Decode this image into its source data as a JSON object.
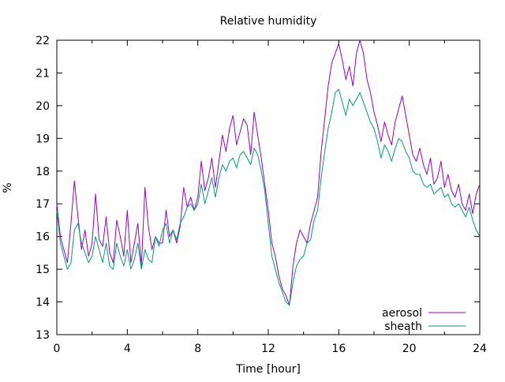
{
  "chart_data": {
    "type": "line",
    "title": "Relative humidity",
    "xlabel": "Time [hour]",
    "ylabel": "%",
    "xlim": [
      0,
      24
    ],
    "ylim": [
      13,
      22
    ],
    "xticks": [
      0,
      4,
      8,
      12,
      16,
      20,
      24
    ],
    "yticks": [
      13,
      14,
      15,
      16,
      17,
      18,
      19,
      20,
      21,
      22
    ],
    "grid": false,
    "legend_position": "bottom-right",
    "series": [
      {
        "name": "aerosol",
        "color": "#9400d3",
        "x": [
          0,
          0.2,
          0.4,
          0.6,
          0.8,
          1.0,
          1.2,
          1.4,
          1.6,
          1.8,
          2.0,
          2.2,
          2.4,
          2.6,
          2.8,
          3.0,
          3.2,
          3.4,
          3.6,
          3.8,
          4.0,
          4.2,
          4.4,
          4.6,
          4.8,
          5.0,
          5.2,
          5.4,
          5.6,
          5.8,
          6.0,
          6.2,
          6.4,
          6.6,
          6.8,
          7.0,
          7.2,
          7.4,
          7.6,
          7.8,
          8.0,
          8.2,
          8.4,
          8.6,
          8.8,
          9.0,
          9.2,
          9.4,
          9.6,
          9.8,
          10.0,
          10.2,
          10.4,
          10.6,
          10.8,
          11.0,
          11.2,
          11.4,
          11.6,
          11.8,
          12.0,
          12.2,
          12.4,
          12.6,
          12.8,
          13.0,
          13.2,
          13.4,
          13.6,
          13.8,
          14.0,
          14.2,
          14.4,
          14.6,
          14.8,
          15.0,
          15.2,
          15.4,
          15.6,
          15.8,
          16.0,
          16.2,
          16.4,
          16.6,
          16.8,
          17.0,
          17.2,
          17.4,
          17.6,
          17.8,
          18.0,
          18.2,
          18.4,
          18.6,
          18.8,
          19.0,
          19.2,
          19.4,
          19.6,
          19.8,
          20.0,
          20.2,
          20.4,
          20.6,
          20.8,
          21.0,
          21.2,
          21.4,
          21.6,
          21.8,
          22.0,
          22.2,
          22.4,
          22.6,
          22.8,
          23.0,
          23.2,
          23.4,
          23.6,
          23.8,
          24.0
        ],
        "values": [
          17.0,
          16.0,
          15.6,
          15.2,
          16.4,
          17.7,
          16.6,
          15.6,
          16.2,
          15.4,
          15.8,
          17.3,
          15.9,
          15.7,
          16.6,
          15.5,
          15.2,
          16.5,
          16.0,
          15.4,
          16.8,
          15.2,
          15.8,
          16.4,
          15.1,
          17.5,
          16.3,
          15.6,
          16.0,
          15.8,
          15.8,
          16.8,
          16.0,
          16.2,
          15.8,
          16.3,
          17.5,
          16.9,
          17.2,
          16.8,
          17.2,
          18.3,
          17.4,
          17.8,
          18.4,
          17.5,
          18.3,
          19.1,
          18.6,
          19.3,
          19.7,
          18.8,
          19.2,
          19.6,
          19.4,
          18.5,
          19.8,
          19.1,
          18.4,
          17.6,
          16.8,
          15.8,
          15.4,
          14.8,
          14.4,
          14.2,
          13.9,
          15.1,
          15.8,
          16.2,
          16.0,
          15.8,
          16.4,
          16.8,
          17.2,
          18.6,
          19.6,
          20.6,
          21.3,
          21.6,
          21.9,
          21.4,
          20.8,
          21.2,
          20.6,
          21.6,
          22.0,
          21.6,
          20.8,
          20.4,
          19.8,
          19.4,
          18.9,
          19.5,
          19.1,
          18.8,
          19.5,
          19.9,
          20.3,
          19.7,
          19.1,
          18.5,
          18.3,
          18.7,
          18.2,
          17.9,
          18.4,
          17.6,
          17.8,
          18.3,
          17.5,
          17.9,
          17.4,
          17.2,
          17.6,
          17.0,
          16.8,
          17.3,
          16.7,
          17.3,
          17.6
        ]
      },
      {
        "name": "sheath",
        "color": "#009e73",
        "x": [
          0,
          0.2,
          0.4,
          0.6,
          0.8,
          1.0,
          1.2,
          1.4,
          1.6,
          1.8,
          2.0,
          2.2,
          2.4,
          2.6,
          2.8,
          3.0,
          3.2,
          3.4,
          3.6,
          3.8,
          4.0,
          4.2,
          4.4,
          4.6,
          4.8,
          5.0,
          5.2,
          5.4,
          5.6,
          5.8,
          6.0,
          6.2,
          6.4,
          6.6,
          6.8,
          7.0,
          7.2,
          7.4,
          7.6,
          7.8,
          8.0,
          8.2,
          8.4,
          8.6,
          8.8,
          9.0,
          9.2,
          9.4,
          9.6,
          9.8,
          10.0,
          10.2,
          10.4,
          10.6,
          10.8,
          11.0,
          11.2,
          11.4,
          11.6,
          11.8,
          12.0,
          12.2,
          12.4,
          12.6,
          12.8,
          13.0,
          13.2,
          13.4,
          13.6,
          13.8,
          14.0,
          14.2,
          14.4,
          14.6,
          14.8,
          15.0,
          15.2,
          15.4,
          15.6,
          15.8,
          16.0,
          16.2,
          16.4,
          16.6,
          16.8,
          17.0,
          17.2,
          17.4,
          17.6,
          17.8,
          18.0,
          18.2,
          18.4,
          18.6,
          18.8,
          19.0,
          19.2,
          19.4,
          19.6,
          19.8,
          20.0,
          20.2,
          20.4,
          20.6,
          20.8,
          21.0,
          21.2,
          21.4,
          21.6,
          21.8,
          22.0,
          22.2,
          22.4,
          22.6,
          22.8,
          23.0,
          23.2,
          23.4,
          23.6,
          23.8,
          24.0
        ],
        "values": [
          16.8,
          15.8,
          15.4,
          15.0,
          15.2,
          16.2,
          16.4,
          15.8,
          15.5,
          15.2,
          15.4,
          16.0,
          15.6,
          15.2,
          15.8,
          15.1,
          15.0,
          15.8,
          15.4,
          15.1,
          15.6,
          15.0,
          15.3,
          15.8,
          15.0,
          15.6,
          15.3,
          15.2,
          16.0,
          15.7,
          16.2,
          16.4,
          15.8,
          16.2,
          15.9,
          16.4,
          16.6,
          16.9,
          17.0,
          16.8,
          17.0,
          17.6,
          17.0,
          17.4,
          17.8,
          17.2,
          17.8,
          18.2,
          18.0,
          18.3,
          18.4,
          18.1,
          18.5,
          18.6,
          18.4,
          18.2,
          18.7,
          18.5,
          18.0,
          17.4,
          16.4,
          15.4,
          15.0,
          14.6,
          14.3,
          14.0,
          13.9,
          14.6,
          15.1,
          15.3,
          15.4,
          15.8,
          15.9,
          16.5,
          16.8,
          17.8,
          18.6,
          19.3,
          19.8,
          20.4,
          20.5,
          20.1,
          19.7,
          20.2,
          20.0,
          20.2,
          20.4,
          20.1,
          19.8,
          19.5,
          19.3,
          18.9,
          18.4,
          18.8,
          18.6,
          18.3,
          18.7,
          19.0,
          18.9,
          18.6,
          18.4,
          18.0,
          17.9,
          17.9,
          17.6,
          17.5,
          17.6,
          17.3,
          17.4,
          17.5,
          17.2,
          17.3,
          17.0,
          16.9,
          17.0,
          16.8,
          16.6,
          16.9,
          16.5,
          16.2,
          16.0
        ]
      }
    ]
  }
}
